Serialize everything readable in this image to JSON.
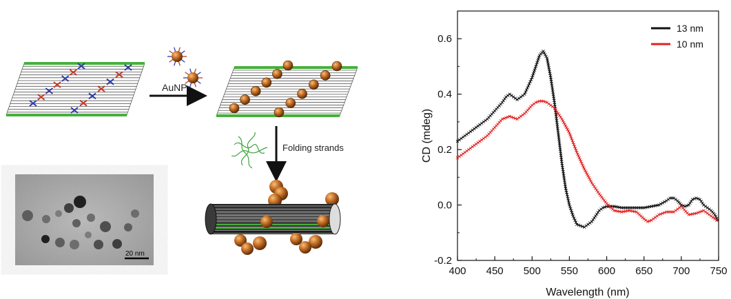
{
  "schematic": {
    "arrow1_label": "AuNP",
    "arrow2_label": "Folding strands",
    "tem_scalebar": "20 nm"
  },
  "colors": {
    "gold": "#b8651f",
    "sheet_edge": "#46b03c",
    "strand_blue": "#2f3aa8",
    "strand_red": "#c0392b",
    "series_13": "#111111",
    "series_10": "#e02020"
  },
  "chart_data": {
    "type": "line",
    "title": "",
    "xlabel": "Wavelength (nm)",
    "ylabel": "CD (mdeg)",
    "xlim": [
      400,
      750
    ],
    "ylim": [
      -0.2,
      0.7
    ],
    "xticks": [
      "400",
      "450",
      "500",
      "550",
      "600",
      "650",
      "700",
      "750"
    ],
    "yticks": [
      "-0.2",
      "0.0",
      "0.2",
      "0.4",
      "0.6"
    ],
    "legend_position": "top-right",
    "series": [
      {
        "name": "13 nm",
        "color": "#111111",
        "x": [
          400,
          410,
          420,
          430,
          440,
          450,
          460,
          465,
          470,
          475,
          480,
          485,
          490,
          495,
          500,
          505,
          510,
          515,
          520,
          525,
          530,
          535,
          540,
          545,
          550,
          555,
          560,
          565,
          570,
          575,
          580,
          585,
          590,
          595,
          600,
          610,
          620,
          630,
          640,
          650,
          660,
          670,
          680,
          685,
          690,
          695,
          700,
          705,
          710,
          715,
          720,
          725,
          730,
          735,
          740,
          745,
          750
        ],
        "y": [
          0.23,
          0.25,
          0.27,
          0.29,
          0.31,
          0.34,
          0.37,
          0.39,
          0.4,
          0.39,
          0.38,
          0.39,
          0.4,
          0.43,
          0.46,
          0.5,
          0.54,
          0.555,
          0.53,
          0.46,
          0.37,
          0.26,
          0.15,
          0.06,
          0.0,
          -0.04,
          -0.07,
          -0.075,
          -0.08,
          -0.07,
          -0.06,
          -0.04,
          -0.02,
          -0.01,
          -0.005,
          -0.005,
          -0.01,
          -0.01,
          -0.01,
          -0.01,
          -0.005,
          0.0,
          0.015,
          0.025,
          0.025,
          0.015,
          0.0,
          -0.005,
          0.0,
          0.02,
          0.025,
          0.02,
          0.0,
          -0.01,
          -0.02,
          -0.035,
          -0.06
        ]
      },
      {
        "name": "10 nm",
        "color": "#e02020",
        "x": [
          400,
          410,
          420,
          430,
          440,
          450,
          460,
          470,
          480,
          490,
          500,
          505,
          510,
          515,
          520,
          525,
          530,
          540,
          550,
          560,
          570,
          580,
          590,
          600,
          610,
          620,
          630,
          640,
          650,
          655,
          660,
          670,
          680,
          690,
          700,
          710,
          720,
          730,
          740,
          750
        ],
        "y": [
          0.17,
          0.19,
          0.21,
          0.23,
          0.25,
          0.28,
          0.31,
          0.32,
          0.31,
          0.33,
          0.36,
          0.37,
          0.375,
          0.375,
          0.37,
          0.36,
          0.35,
          0.31,
          0.26,
          0.19,
          0.13,
          0.08,
          0.04,
          0.005,
          -0.02,
          -0.025,
          -0.02,
          -0.025,
          -0.05,
          -0.06,
          -0.055,
          -0.035,
          -0.025,
          -0.025,
          -0.005,
          -0.035,
          -0.03,
          -0.02,
          -0.04,
          -0.06
        ]
      }
    ]
  }
}
